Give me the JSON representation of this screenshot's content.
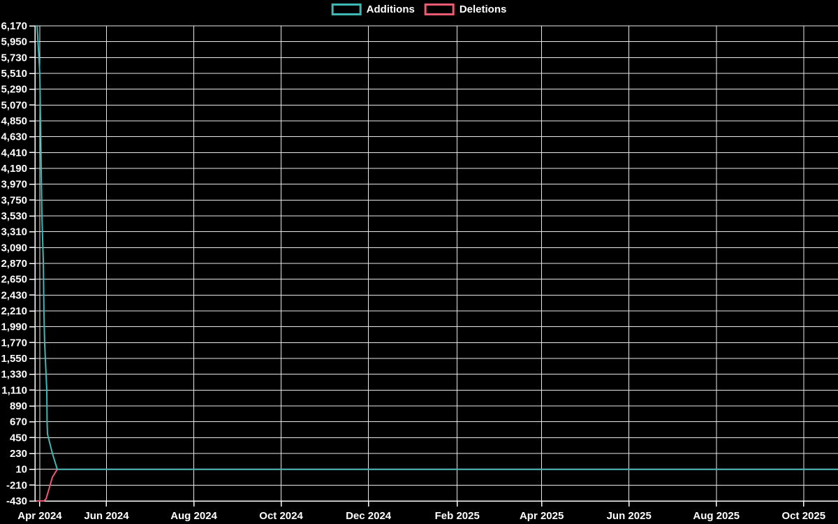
{
  "page": {
    "background": "#000000",
    "text_color": "#ffffff",
    "gridline_color": "#e8e8e8"
  },
  "legend": {
    "items": [
      {
        "label": "Additions",
        "color": "#3fb8b4"
      },
      {
        "label": "Deletions",
        "color": "#ed5a71"
      }
    ]
  },
  "chart_data": {
    "type": "line",
    "title": "",
    "xlabel": "",
    "ylabel": "",
    "grid": true,
    "legend_position": "top-center",
    "x_axis": {
      "unit": "time (months)",
      "t_domain_days": [
        0,
        561
      ],
      "ticks": [
        {
          "label": "Apr 2024",
          "t": 3.4
        },
        {
          "label": "Jun 2024",
          "t": 50
        },
        {
          "label": "Aug 2024",
          "t": 111
        },
        {
          "label": "Oct 2024",
          "t": 172
        },
        {
          "label": "Dec 2024",
          "t": 233
        },
        {
          "label": "Feb 2025",
          "t": 295
        },
        {
          "label": "Apr 2025",
          "t": 354
        },
        {
          "label": "Jun 2025",
          "t": 415
        },
        {
          "label": "Aug 2025",
          "t": 476
        },
        {
          "label": "Oct 2025",
          "t": 537
        }
      ]
    },
    "y_axis": {
      "min": -430,
      "max": 6170,
      "step": 220,
      "tick_labels": [
        "6,170",
        "5,950",
        "5,730",
        "5,510",
        "5,290",
        "5,070",
        "4,850",
        "4,630",
        "4,410",
        "4,190",
        "3,970",
        "3,750",
        "3,530",
        "3,310",
        "3,090",
        "2,870",
        "2,650",
        "2,430",
        "2,210",
        "1,990",
        "1,770",
        "1,550",
        "1,330",
        "1,110",
        "890",
        "670",
        "450",
        "230",
        "10",
        "-210",
        "-430"
      ]
    },
    "series": [
      {
        "name": "Additions",
        "color": "#3fb8b4",
        "points": [
          [
            1.5,
            6170
          ],
          [
            3.4,
            5510
          ],
          [
            3.9,
            4850
          ],
          [
            4.4,
            4190
          ],
          [
            4.9,
            3530
          ],
          [
            5.9,
            2870
          ],
          [
            6.3,
            2210
          ],
          [
            6.8,
            1770
          ],
          [
            8.3,
            1110
          ],
          [
            8.5,
            670
          ],
          [
            8.8,
            500
          ],
          [
            12.2,
            230
          ],
          [
            15.6,
            10
          ],
          [
            561,
            10
          ]
        ]
      },
      {
        "name": "Deletions",
        "color": "#ed5a71",
        "points": [
          [
            1.5,
            -430
          ],
          [
            6.3,
            -430
          ],
          [
            7.8,
            -400
          ],
          [
            9.8,
            -265
          ],
          [
            12.2,
            -100
          ],
          [
            15.6,
            10
          ],
          [
            561,
            10
          ]
        ]
      }
    ]
  }
}
